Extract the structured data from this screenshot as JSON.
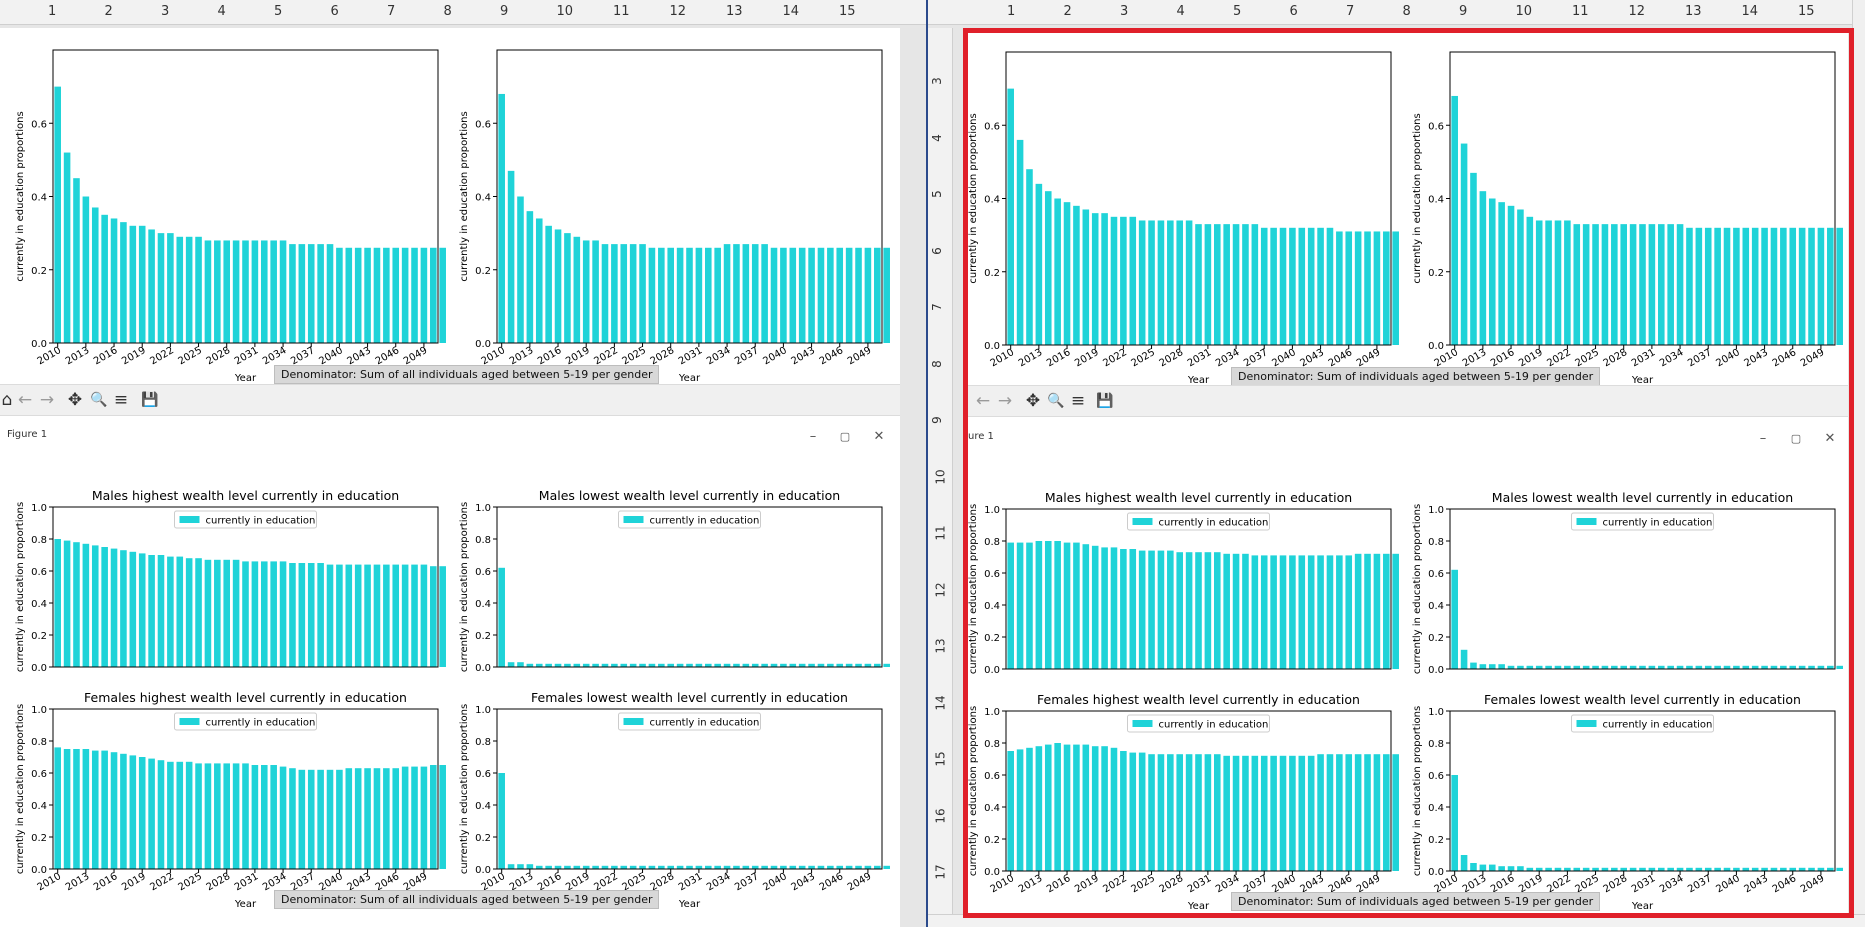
{
  "ruler_numbers": [
    "1",
    "2",
    "3",
    "4",
    "5",
    "6",
    "7",
    "8",
    "9",
    "10",
    "11",
    "12",
    "13",
    "14",
    "15"
  ],
  "vruler_numbers": [
    "3",
    "4",
    "5",
    "6",
    "7",
    "8",
    "9",
    "10",
    "11",
    "12",
    "13",
    "14",
    "15",
    "16",
    "17",
    "8"
  ],
  "figure_window": {
    "left_title": "Figure 1",
    "right_title": "ure 1"
  },
  "toolbar": {
    "home": "⌂",
    "back": "←",
    "forward": "→",
    "pan": "✥",
    "zoom": "🔍",
    "configure": "≡",
    "save": "💾"
  },
  "window_controls": {
    "minimize": "–",
    "maximize": "▢",
    "close": "✕"
  },
  "notes": {
    "left": "Denominator: Sum of all individuals aged between 5-19 per gender",
    "right": "Denominator: Sum of individuals aged between 5-19 per gender"
  },
  "colors": {
    "bar": "#1fd3d8",
    "frame": "#e0202a",
    "divider": "#2b4a8c"
  },
  "chart_data": [
    {
      "id": "left-top-a",
      "type": "bar",
      "ylabel": "currently in education proportions",
      "xlabel": "Year",
      "x_ticks": [
        "2010",
        "2013",
        "2016",
        "2019",
        "2022",
        "2025",
        "2028",
        "2031",
        "2034",
        "2037",
        "2040",
        "2043",
        "2046",
        "2049"
      ],
      "y_ticks": [
        "0.0",
        "0.2",
        "0.4",
        "0.6"
      ],
      "ylim": [
        0,
        0.8
      ],
      "year_range": [
        2010,
        2051
      ],
      "values": [
        0.7,
        0.52,
        0.45,
        0.4,
        0.37,
        0.35,
        0.34,
        0.33,
        0.32,
        0.32,
        0.31,
        0.3,
        0.3,
        0.29,
        0.29,
        0.29,
        0.28,
        0.28,
        0.28,
        0.28,
        0.28,
        0.28,
        0.28,
        0.28,
        0.28,
        0.27,
        0.27,
        0.27,
        0.27,
        0.27,
        0.26,
        0.26,
        0.26,
        0.26,
        0.26,
        0.26,
        0.26,
        0.26,
        0.26,
        0.26,
        0.26,
        0.26
      ]
    },
    {
      "id": "left-top-b",
      "type": "bar",
      "ylabel": "currently in education proportions",
      "xlabel": "Year",
      "x_ticks": [
        "2010",
        "2013",
        "2016",
        "2019",
        "2022",
        "2025",
        "2028",
        "2031",
        "2034",
        "2037",
        "2040",
        "2043",
        "2046",
        "2049"
      ],
      "y_ticks": [
        "0.0",
        "0.2",
        "0.4",
        "0.6"
      ],
      "ylim": [
        0,
        0.8
      ],
      "year_range": [
        2010,
        2051
      ],
      "values": [
        0.68,
        0.47,
        0.4,
        0.36,
        0.34,
        0.32,
        0.31,
        0.3,
        0.29,
        0.28,
        0.28,
        0.27,
        0.27,
        0.27,
        0.27,
        0.27,
        0.26,
        0.26,
        0.26,
        0.26,
        0.26,
        0.26,
        0.26,
        0.26,
        0.27,
        0.27,
        0.27,
        0.27,
        0.27,
        0.26,
        0.26,
        0.26,
        0.26,
        0.26,
        0.26,
        0.26,
        0.26,
        0.26,
        0.26,
        0.26,
        0.26,
        0.26
      ]
    },
    {
      "id": "left-mhi",
      "type": "bar",
      "title": "Males highest wealth level currently in education",
      "ylabel": "currently in education proportions",
      "legend": "currently in education",
      "x_ticks": [],
      "y_ticks": [
        "0.0",
        "0.2",
        "0.4",
        "0.6",
        "0.8",
        "1.0"
      ],
      "ylim": [
        0,
        1.0
      ],
      "year_range": [
        2010,
        2051
      ],
      "values": [
        0.8,
        0.79,
        0.78,
        0.77,
        0.76,
        0.75,
        0.74,
        0.73,
        0.72,
        0.71,
        0.7,
        0.7,
        0.69,
        0.69,
        0.68,
        0.68,
        0.67,
        0.67,
        0.67,
        0.67,
        0.66,
        0.66,
        0.66,
        0.66,
        0.66,
        0.65,
        0.65,
        0.65,
        0.65,
        0.64,
        0.64,
        0.64,
        0.64,
        0.64,
        0.64,
        0.64,
        0.64,
        0.64,
        0.64,
        0.64,
        0.63,
        0.63
      ]
    },
    {
      "id": "left-mlo",
      "type": "bar",
      "title": "Males lowest wealth level currently in education",
      "ylabel": "currently in education proportions",
      "legend": "currently in education",
      "x_ticks": [],
      "y_ticks": [
        "0.0",
        "0.2",
        "0.4",
        "0.6",
        "0.8",
        "1.0"
      ],
      "ylim": [
        0,
        1.0
      ],
      "year_range": [
        2010,
        2051
      ],
      "values": [
        0.62,
        0.03,
        0.03,
        0.02,
        0.02,
        0.02,
        0.02,
        0.02,
        0.02,
        0.02,
        0.02,
        0.02,
        0.02,
        0.02,
        0.02,
        0.02,
        0.02,
        0.02,
        0.02,
        0.02,
        0.02,
        0.02,
        0.02,
        0.02,
        0.02,
        0.02,
        0.02,
        0.02,
        0.02,
        0.02,
        0.02,
        0.02,
        0.02,
        0.02,
        0.02,
        0.02,
        0.02,
        0.02,
        0.02,
        0.02,
        0.02,
        0.02
      ]
    },
    {
      "id": "left-fhi",
      "type": "bar",
      "title": "Females highest wealth level currently in education",
      "ylabel": "currently in education proportions",
      "xlabel": "Year",
      "legend": "currently in education",
      "x_ticks": [
        "2010",
        "2013",
        "2016",
        "2019",
        "2022",
        "2025",
        "2028",
        "2031",
        "2034",
        "2037",
        "2040",
        "2043",
        "2046",
        "2049"
      ],
      "y_ticks": [
        "0.0",
        "0.2",
        "0.4",
        "0.6",
        "0.8",
        "1.0"
      ],
      "ylim": [
        0,
        1.0
      ],
      "year_range": [
        2010,
        2051
      ],
      "values": [
        0.76,
        0.75,
        0.75,
        0.75,
        0.74,
        0.74,
        0.73,
        0.72,
        0.71,
        0.7,
        0.69,
        0.68,
        0.67,
        0.67,
        0.67,
        0.66,
        0.66,
        0.66,
        0.66,
        0.66,
        0.66,
        0.65,
        0.65,
        0.65,
        0.64,
        0.63,
        0.62,
        0.62,
        0.62,
        0.62,
        0.62,
        0.63,
        0.63,
        0.63,
        0.63,
        0.63,
        0.63,
        0.64,
        0.64,
        0.64,
        0.65,
        0.65
      ]
    },
    {
      "id": "left-flo",
      "type": "bar",
      "title": "Females lowest wealth level currently in education",
      "ylabel": "currently in education proportions",
      "xlabel": "Year",
      "legend": "currently in education",
      "x_ticks": [
        "2010",
        "2013",
        "2016",
        "2019",
        "2022",
        "2025",
        "2028",
        "2031",
        "2034",
        "2037",
        "2040",
        "2043",
        "2046",
        "2049"
      ],
      "y_ticks": [
        "0.0",
        "0.2",
        "0.4",
        "0.6",
        "0.8",
        "1.0"
      ],
      "ylim": [
        0,
        1.0
      ],
      "year_range": [
        2010,
        2051
      ],
      "values": [
        0.6,
        0.03,
        0.03,
        0.03,
        0.02,
        0.02,
        0.02,
        0.02,
        0.02,
        0.02,
        0.02,
        0.02,
        0.02,
        0.02,
        0.02,
        0.02,
        0.02,
        0.02,
        0.02,
        0.02,
        0.02,
        0.02,
        0.02,
        0.02,
        0.02,
        0.02,
        0.02,
        0.02,
        0.02,
        0.02,
        0.02,
        0.02,
        0.02,
        0.02,
        0.02,
        0.02,
        0.02,
        0.02,
        0.02,
        0.02,
        0.02,
        0.02
      ]
    },
    {
      "id": "right-top-a",
      "type": "bar",
      "ylabel": "currently in education proportions",
      "xlabel": "Year",
      "x_ticks": [
        "2010",
        "2013",
        "2016",
        "2019",
        "2022",
        "2025",
        "2028",
        "2031",
        "2034",
        "2037",
        "2040",
        "2043",
        "2046",
        "2049"
      ],
      "y_ticks": [
        "0.0",
        "0.2",
        "0.4",
        "0.6"
      ],
      "ylim": [
        0,
        0.8
      ],
      "year_range": [
        2010,
        2051
      ],
      "values": [
        0.7,
        0.56,
        0.48,
        0.44,
        0.42,
        0.4,
        0.39,
        0.38,
        0.37,
        0.36,
        0.36,
        0.35,
        0.35,
        0.35,
        0.34,
        0.34,
        0.34,
        0.34,
        0.34,
        0.34,
        0.33,
        0.33,
        0.33,
        0.33,
        0.33,
        0.33,
        0.33,
        0.32,
        0.32,
        0.32,
        0.32,
        0.32,
        0.32,
        0.32,
        0.32,
        0.31,
        0.31,
        0.31,
        0.31,
        0.31,
        0.31,
        0.31
      ]
    },
    {
      "id": "right-top-b",
      "type": "bar",
      "ylabel": "currently in education proportions",
      "xlabel": "Year",
      "x_ticks": [
        "2010",
        "2013",
        "2016",
        "2019",
        "2022",
        "2025",
        "2028",
        "2031",
        "2034",
        "2037",
        "2040",
        "2043",
        "2046",
        "2049"
      ],
      "y_ticks": [
        "0.0",
        "0.2",
        "0.4",
        "0.6"
      ],
      "ylim": [
        0,
        0.8
      ],
      "year_range": [
        2010,
        2051
      ],
      "values": [
        0.68,
        0.55,
        0.47,
        0.42,
        0.4,
        0.39,
        0.38,
        0.37,
        0.35,
        0.34,
        0.34,
        0.34,
        0.34,
        0.33,
        0.33,
        0.33,
        0.33,
        0.33,
        0.33,
        0.33,
        0.33,
        0.33,
        0.33,
        0.33,
        0.33,
        0.32,
        0.32,
        0.32,
        0.32,
        0.32,
        0.32,
        0.32,
        0.32,
        0.32,
        0.32,
        0.32,
        0.32,
        0.32,
        0.32,
        0.32,
        0.32,
        0.32
      ]
    },
    {
      "id": "right-mhi",
      "type": "bar",
      "title": "Males highest wealth level currently in education",
      "ylabel": "currently in education proportions",
      "legend": "currently in education",
      "x_ticks": [],
      "y_ticks": [
        "0.0",
        "0.2",
        "0.4",
        "0.6",
        "0.8",
        "1.0"
      ],
      "ylim": [
        0,
        1.0
      ],
      "year_range": [
        2010,
        2051
      ],
      "values": [
        0.79,
        0.79,
        0.79,
        0.8,
        0.8,
        0.8,
        0.79,
        0.79,
        0.78,
        0.77,
        0.76,
        0.76,
        0.75,
        0.75,
        0.74,
        0.74,
        0.74,
        0.74,
        0.73,
        0.73,
        0.73,
        0.73,
        0.73,
        0.72,
        0.72,
        0.72,
        0.71,
        0.71,
        0.71,
        0.71,
        0.71,
        0.71,
        0.71,
        0.71,
        0.71,
        0.71,
        0.71,
        0.72,
        0.72,
        0.72,
        0.72,
        0.72
      ]
    },
    {
      "id": "right-mlo",
      "type": "bar",
      "title": "Males lowest wealth level currently in education",
      "ylabel": "currently in education proportions",
      "legend": "currently in education",
      "x_ticks": [],
      "y_ticks": [
        "0.0",
        "0.2",
        "0.4",
        "0.6",
        "0.8",
        "1.0"
      ],
      "ylim": [
        0,
        1.0
      ],
      "year_range": [
        2010,
        2051
      ],
      "values": [
        0.62,
        0.12,
        0.04,
        0.03,
        0.03,
        0.03,
        0.02,
        0.02,
        0.02,
        0.02,
        0.02,
        0.02,
        0.02,
        0.02,
        0.02,
        0.02,
        0.02,
        0.02,
        0.02,
        0.02,
        0.02,
        0.02,
        0.02,
        0.02,
        0.02,
        0.02,
        0.02,
        0.02,
        0.02,
        0.02,
        0.02,
        0.02,
        0.02,
        0.02,
        0.02,
        0.02,
        0.02,
        0.02,
        0.02,
        0.02,
        0.02,
        0.02
      ]
    },
    {
      "id": "right-fhi",
      "type": "bar",
      "title": "Females highest wealth level currently in education",
      "ylabel": "currently in education proportions",
      "xlabel": "Year",
      "legend": "currently in education",
      "x_ticks": [
        "2010",
        "2013",
        "2016",
        "2019",
        "2022",
        "2025",
        "2028",
        "2031",
        "2034",
        "2037",
        "2040",
        "2043",
        "2046",
        "2049"
      ],
      "y_ticks": [
        "0.0",
        "0.2",
        "0.4",
        "0.6",
        "0.8",
        "1.0"
      ],
      "ylim": [
        0,
        1.0
      ],
      "year_range": [
        2010,
        2051
      ],
      "values": [
        0.75,
        0.76,
        0.77,
        0.78,
        0.79,
        0.8,
        0.79,
        0.79,
        0.79,
        0.78,
        0.78,
        0.77,
        0.75,
        0.74,
        0.74,
        0.73,
        0.73,
        0.73,
        0.73,
        0.73,
        0.73,
        0.73,
        0.73,
        0.72,
        0.72,
        0.72,
        0.72,
        0.72,
        0.72,
        0.72,
        0.72,
        0.72,
        0.72,
        0.73,
        0.73,
        0.73,
        0.73,
        0.73,
        0.73,
        0.73,
        0.73,
        0.73
      ]
    },
    {
      "id": "right-flo",
      "type": "bar",
      "title": "Females lowest wealth level currently in education",
      "ylabel": "currently in education proportions",
      "xlabel": "Year",
      "legend": "currently in education",
      "x_ticks": [
        "2010",
        "2013",
        "2016",
        "2019",
        "2022",
        "2025",
        "2028",
        "2031",
        "2034",
        "2037",
        "2040",
        "2043",
        "2046",
        "2049"
      ],
      "y_ticks": [
        "0.0",
        "0.2",
        "0.4",
        "0.6",
        "0.8",
        "1.0"
      ],
      "ylim": [
        0,
        1.0
      ],
      "year_range": [
        2010,
        2051
      ],
      "values": [
        0.6,
        0.1,
        0.05,
        0.04,
        0.04,
        0.03,
        0.03,
        0.03,
        0.02,
        0.02,
        0.02,
        0.02,
        0.02,
        0.02,
        0.02,
        0.02,
        0.02,
        0.02,
        0.02,
        0.02,
        0.02,
        0.02,
        0.02,
        0.02,
        0.02,
        0.02,
        0.02,
        0.02,
        0.02,
        0.02,
        0.02,
        0.02,
        0.02,
        0.02,
        0.02,
        0.02,
        0.02,
        0.02,
        0.02,
        0.02,
        0.02,
        0.02
      ]
    }
  ]
}
